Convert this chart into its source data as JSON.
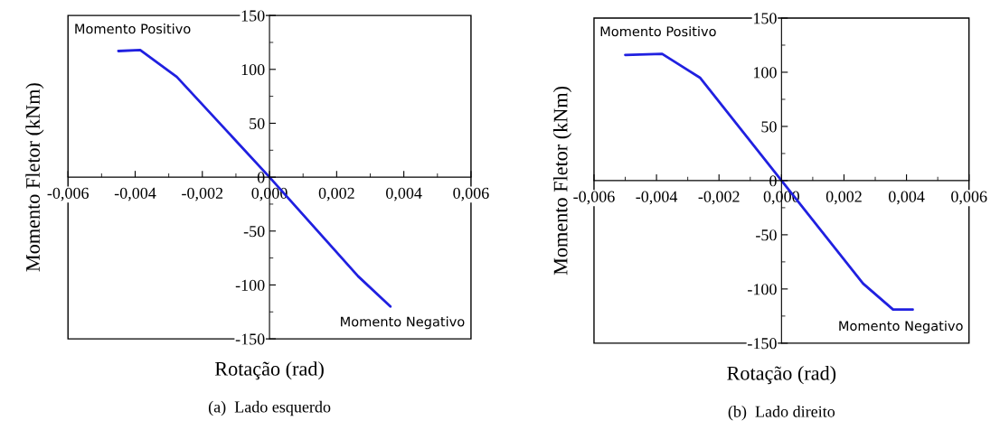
{
  "chart_data": [
    {
      "type": "line",
      "xlabel": "Rotação (rad)",
      "ylabel": "Momento Fletor (kNm)",
      "annotations": [
        "Momento Positivo",
        "Momento Negativo",
        "(a)  Lado esquerdo"
      ],
      "x": [
        -0.0045,
        -0.00385,
        -0.00276,
        0,
        0.00264,
        0.0036
      ],
      "series": [
        {
          "color": "#2020e0",
          "values": [
            117,
            118,
            93,
            0,
            -92,
            -120
          ]
        }
      ],
      "xlim": [
        -0.006,
        0.006
      ],
      "ylim": [
        -150,
        150
      ],
      "xticks": [
        {
          "value": -0.006,
          "label": "-0,006"
        },
        {
          "value": -0.005,
          "label": null
        },
        {
          "value": -0.004,
          "label": "-0,004"
        },
        {
          "value": -0.003,
          "label": null
        },
        {
          "value": -0.002,
          "label": "-0,002"
        },
        {
          "value": -0.001,
          "label": null
        },
        {
          "value": 0,
          "label": "0,000"
        },
        {
          "value": 0.001,
          "label": null
        },
        {
          "value": 0.002,
          "label": "0,002"
        },
        {
          "value": 0.003,
          "label": null
        },
        {
          "value": 0.004,
          "label": "0,004"
        },
        {
          "value": 0.005,
          "label": null
        },
        {
          "value": 0.006,
          "label": "0,006"
        }
      ],
      "yticks": [
        {
          "value": -150,
          "label": "-150"
        },
        {
          "value": -125,
          "label": null
        },
        {
          "value": -100,
          "label": "-100"
        },
        {
          "value": -75,
          "label": null
        },
        {
          "value": -50,
          "label": "-50"
        },
        {
          "value": -25,
          "label": null
        },
        0,
        {
          "value": 25,
          "label": null
        },
        50,
        {
          "value": 75,
          "label": null
        },
        100,
        {
          "value": 125,
          "label": null
        },
        150
      ]
    },
    {
      "type": "line",
      "xlabel": "Rotação (rad)",
      "ylabel": "Momento Fletor (kNm)",
      "annotations": [
        "Momento Positivo",
        "Momento Negativo",
        "(b)  Lado direito"
      ],
      "x": [
        -0.005,
        -0.00382,
        -0.00261,
        0,
        0.00261,
        0.00357,
        0.0042
      ],
      "series": [
        {
          "color": "#2020e0",
          "values": [
            116,
            117,
            95,
            0,
            -95,
            -119,
            -119
          ]
        }
      ],
      "xlim": [
        -0.006,
        0.006
      ],
      "ylim": [
        -150,
        150
      ],
      "xticks": [
        {
          "value": -0.006,
          "label": "-0,006"
        },
        {
          "value": -0.005,
          "label": null
        },
        {
          "value": -0.004,
          "label": "-0,004"
        },
        {
          "value": -0.003,
          "label": null
        },
        {
          "value": -0.002,
          "label": "-0,002"
        },
        {
          "value": -0.001,
          "label": null
        },
        {
          "value": 0,
          "label": "0,000"
        },
        {
          "value": 0.001,
          "label": null
        },
        {
          "value": 0.002,
          "label": "0,002"
        },
        {
          "value": 0.003,
          "label": null
        },
        {
          "value": 0.004,
          "label": "0,004"
        },
        {
          "value": 0.005,
          "label": null
        },
        {
          "value": 0.006,
          "label": "0,006"
        }
      ],
      "yticks": [
        {
          "value": -150,
          "label": "-150"
        },
        {
          "value": -125,
          "label": null
        },
        {
          "value": -100,
          "label": "-100"
        },
        {
          "value": -75,
          "label": null
        },
        {
          "value": -50,
          "label": "-50"
        },
        {
          "value": -25,
          "label": null
        },
        0,
        {
          "value": 25,
          "label": null
        },
        50,
        {
          "value": 75,
          "label": null
        },
        100,
        {
          "value": 125,
          "label": null
        },
        150
      ]
    }
  ]
}
